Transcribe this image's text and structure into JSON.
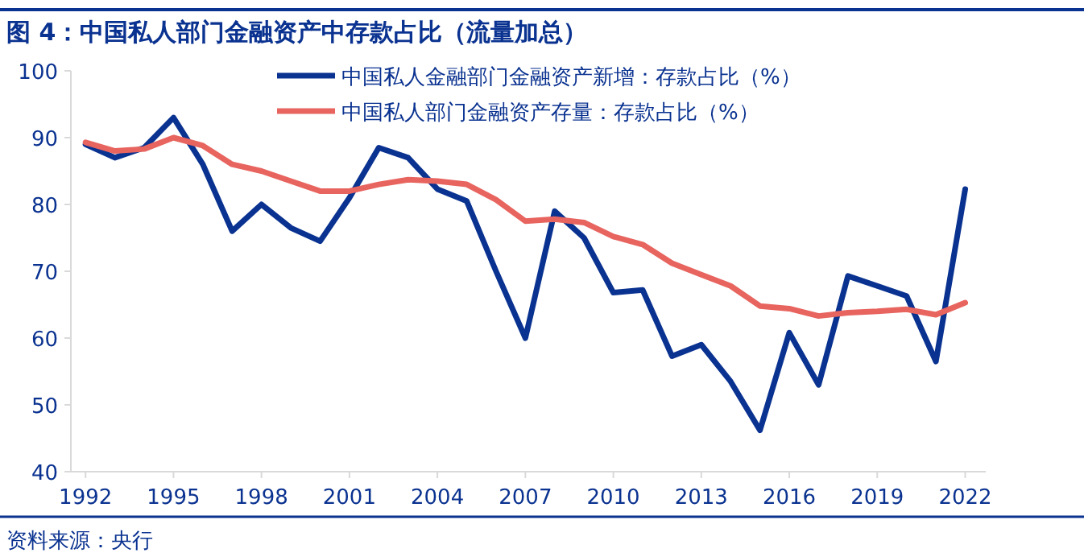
{
  "chart_data": {
    "type": "line",
    "title": "图 4：中国私人部门金融资产中存款占比（流量加总）",
    "annotations": [
      "资料来源：央行"
    ],
    "x": [
      1992,
      1993,
      1994,
      1995,
      1996,
      1997,
      1998,
      1999,
      2000,
      2001,
      2002,
      2003,
      2004,
      2005,
      2006,
      2007,
      2008,
      2009,
      2010,
      2011,
      2012,
      2013,
      2014,
      2015,
      2016,
      2017,
      2018,
      2019,
      2020,
      2021,
      2022
    ],
    "series": [
      {
        "name": "中国私人金融部门金融资产新增：存款占比（%）",
        "color": "#0a3290",
        "values": [
          89,
          87,
          88.5,
          93,
          86,
          76,
          80,
          76.5,
          74.5,
          81,
          88.5,
          87,
          82.3,
          80.5,
          70,
          60,
          79,
          75,
          66.8,
          67.2,
          57.3,
          59,
          53.5,
          46.2,
          60.8,
          53,
          69.3,
          67.8,
          66.3,
          56.5,
          82.3
        ]
      },
      {
        "name": "中国私人部门金融资产存量：存款占比（%）",
        "color": "#e8645f",
        "values": [
          89.3,
          88,
          88.3,
          90,
          88.8,
          86,
          85,
          83.5,
          82,
          82,
          83,
          83.7,
          83.5,
          83,
          80.7,
          77.5,
          77.8,
          77.3,
          75.2,
          74,
          71.2,
          69.5,
          67.8,
          64.8,
          64.4,
          63.3,
          63.8,
          64,
          64.3,
          63.5,
          65.3
        ]
      }
    ],
    "xlim": [
      1991.5,
      2022.7
    ],
    "xticks": [
      1992,
      1995,
      1998,
      2001,
      2004,
      2007,
      2010,
      2013,
      2016,
      2019,
      2022
    ],
    "ylim": [
      40,
      100
    ],
    "yticks": [
      40,
      50,
      60,
      70,
      80,
      90,
      100
    ],
    "grid": false,
    "legend": "top right",
    "marker": "none",
    "line_style": "solid"
  }
}
